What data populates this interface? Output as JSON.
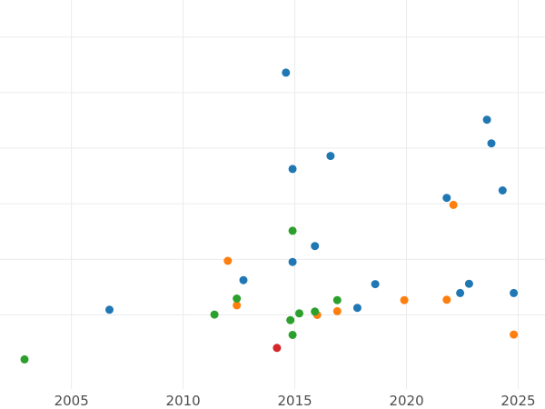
{
  "chart_data": {
    "type": "scatter",
    "title": "",
    "xlabel": "",
    "ylabel": "",
    "xlim": [
      2001.8,
      2026.2
    ],
    "ylim": [
      -1,
      9.5
    ],
    "grid": true,
    "legend": "none",
    "x_ticks": [
      2005,
      2010,
      2015,
      2020,
      2025
    ],
    "x_tick_labels": [
      "2005",
      "2010",
      "2015",
      "2020",
      "2025"
    ],
    "y_grid_values": [
      1,
      2.5,
      4,
      5.5,
      7,
      8.5
    ],
    "series": [
      {
        "color": "#1f77b4",
        "points": [
          {
            "x": 2006.7,
            "y": 1.14
          },
          {
            "x": 2012.7,
            "y": 1.94
          },
          {
            "x": 2014.6,
            "y": 7.54
          },
          {
            "x": 2014.9,
            "y": 4.94
          },
          {
            "x": 2014.9,
            "y": 2.43
          },
          {
            "x": 2015.9,
            "y": 2.86
          },
          {
            "x": 2016.6,
            "y": 5.29
          },
          {
            "x": 2017.8,
            "y": 1.19
          },
          {
            "x": 2018.6,
            "y": 1.83
          },
          {
            "x": 2021.8,
            "y": 4.16
          },
          {
            "x": 2022.4,
            "y": 1.59
          },
          {
            "x": 2022.8,
            "y": 1.84
          },
          {
            "x": 2023.6,
            "y": 6.27
          },
          {
            "x": 2023.8,
            "y": 5.63
          },
          {
            "x": 2024.3,
            "y": 4.36
          },
          {
            "x": 2024.8,
            "y": 1.59
          }
        ]
      },
      {
        "color": "#ff7f0e",
        "points": [
          {
            "x": 2012.0,
            "y": 2.46
          },
          {
            "x": 2012.4,
            "y": 1.26
          },
          {
            "x": 2016.0,
            "y": 1.0
          },
          {
            "x": 2016.9,
            "y": 1.1
          },
          {
            "x": 2019.9,
            "y": 1.4
          },
          {
            "x": 2021.8,
            "y": 1.41
          },
          {
            "x": 2022.1,
            "y": 3.97
          },
          {
            "x": 2024.8,
            "y": 0.47
          }
        ]
      },
      {
        "color": "#2ca02c",
        "points": [
          {
            "x": 2002.9,
            "y": -0.2
          },
          {
            "x": 2011.4,
            "y": 1.01
          },
          {
            "x": 2012.4,
            "y": 1.44
          },
          {
            "x": 2014.8,
            "y": 0.86
          },
          {
            "x": 2014.9,
            "y": 3.27
          },
          {
            "x": 2014.9,
            "y": 0.46
          },
          {
            "x": 2015.2,
            "y": 1.04
          },
          {
            "x": 2015.9,
            "y": 1.09
          },
          {
            "x": 2016.9,
            "y": 1.4
          }
        ]
      },
      {
        "color": "#d62728",
        "points": [
          {
            "x": 2014.2,
            "y": 0.11
          }
        ]
      }
    ]
  }
}
